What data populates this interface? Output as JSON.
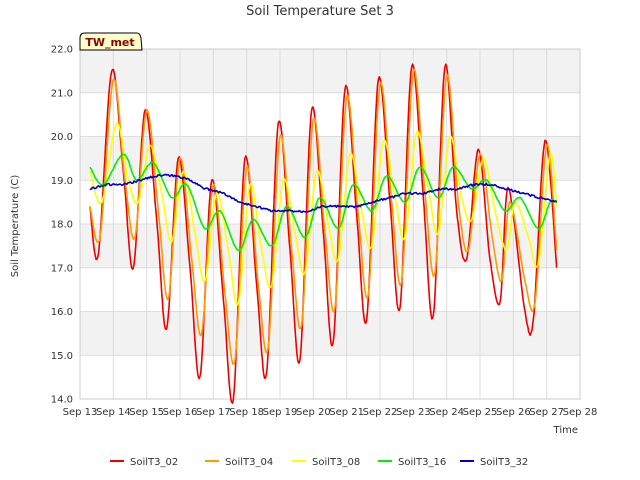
{
  "chart_data": {
    "type": "line",
    "title": "Soil Temperature Set 3",
    "xlabel": "Time",
    "ylabel": "Soil Temperature (C)",
    "badge": "TW_met",
    "ylim": [
      14.0,
      22.0
    ],
    "yticks": [
      "14.0",
      "15.0",
      "16.0",
      "17.0",
      "18.0",
      "19.0",
      "20.0",
      "21.0",
      "22.0"
    ],
    "xlim": [
      "Sep 13",
      "Sep 28"
    ],
    "xticks": [
      "Sep 13",
      "Sep 14",
      "Sep 15",
      "Sep 16",
      "Sep 17",
      "Sep 18",
      "Sep 19",
      "Sep 20",
      "Sep 21",
      "Sep 22",
      "Sep 23",
      "Sep 24",
      "Sep 25",
      "Sep 26",
      "Sep 27",
      "Sep 28"
    ],
    "grid": true,
    "legend_position": "bottom",
    "x_units": "days (Sep 13 = 13)",
    "series": [
      {
        "name": "SoilT3_02",
        "color": "#ee0000",
        "points": [
          [
            13.3,
            18.4
          ],
          [
            13.55,
            17.3
          ],
          [
            13.95,
            21.5
          ],
          [
            14.3,
            19.2
          ],
          [
            14.6,
            17.0
          ],
          [
            14.95,
            20.6
          ],
          [
            15.3,
            18.1
          ],
          [
            15.6,
            15.6
          ],
          [
            15.95,
            19.5
          ],
          [
            16.3,
            17.0
          ],
          [
            16.6,
            14.5
          ],
          [
            16.95,
            19.0
          ],
          [
            17.3,
            16.3
          ],
          [
            17.6,
            14.0
          ],
          [
            17.95,
            19.5
          ],
          [
            18.3,
            16.6
          ],
          [
            18.6,
            14.6
          ],
          [
            18.95,
            20.3
          ],
          [
            19.3,
            17.4
          ],
          [
            19.6,
            14.9
          ],
          [
            19.95,
            20.6
          ],
          [
            20.3,
            17.8
          ],
          [
            20.6,
            15.3
          ],
          [
            20.95,
            21.1
          ],
          [
            21.3,
            18.2
          ],
          [
            21.6,
            15.8
          ],
          [
            21.95,
            21.3
          ],
          [
            22.3,
            18.5
          ],
          [
            22.6,
            16.1
          ],
          [
            22.95,
            21.6
          ],
          [
            23.3,
            18.6
          ],
          [
            23.6,
            15.9
          ],
          [
            23.95,
            21.6
          ],
          [
            24.3,
            18.3
          ],
          [
            24.6,
            17.2
          ],
          [
            24.95,
            19.7
          ],
          [
            25.3,
            17.2
          ],
          [
            25.6,
            16.2
          ],
          [
            25.8,
            18.7
          ],
          [
            26.0,
            18.2
          ],
          [
            26.35,
            16.0
          ],
          [
            26.6,
            15.8
          ],
          [
            26.95,
            19.9
          ],
          [
            27.3,
            17.0
          ]
        ]
      },
      {
        "name": "SoilT3_04",
        "color": "#ff9900",
        "points": [
          [
            13.3,
            18.4
          ],
          [
            13.6,
            17.7
          ],
          [
            14.0,
            21.3
          ],
          [
            14.35,
            19.0
          ],
          [
            14.65,
            17.7
          ],
          [
            15.0,
            20.6
          ],
          [
            15.35,
            18.3
          ],
          [
            15.65,
            16.3
          ],
          [
            16.0,
            19.5
          ],
          [
            16.35,
            17.2
          ],
          [
            16.65,
            15.5
          ],
          [
            17.0,
            18.9
          ],
          [
            17.35,
            16.4
          ],
          [
            17.65,
            14.9
          ],
          [
            18.0,
            19.3
          ],
          [
            18.35,
            16.6
          ],
          [
            18.65,
            15.2
          ],
          [
            19.0,
            20.0
          ],
          [
            19.35,
            17.4
          ],
          [
            19.65,
            15.7
          ],
          [
            20.0,
            20.4
          ],
          [
            20.35,
            17.8
          ],
          [
            20.65,
            16.1
          ],
          [
            21.0,
            20.9
          ],
          [
            21.35,
            18.2
          ],
          [
            21.65,
            16.4
          ],
          [
            22.0,
            21.2
          ],
          [
            22.35,
            18.5
          ],
          [
            22.65,
            16.7
          ],
          [
            23.0,
            21.5
          ],
          [
            23.35,
            18.7
          ],
          [
            23.65,
            16.9
          ],
          [
            24.0,
            21.4
          ],
          [
            24.35,
            18.5
          ],
          [
            24.65,
            17.4
          ],
          [
            25.0,
            19.6
          ],
          [
            25.35,
            17.8
          ],
          [
            25.65,
            16.7
          ],
          [
            25.9,
            18.5
          ],
          [
            26.35,
            16.7
          ],
          [
            26.65,
            16.2
          ],
          [
            27.0,
            19.8
          ],
          [
            27.3,
            17.4
          ]
        ]
      },
      {
        "name": "SoilT3_08",
        "color": "#ffff00",
        "points": [
          [
            13.3,
            19.2
          ],
          [
            13.65,
            18.5
          ],
          [
            14.1,
            20.3
          ],
          [
            14.45,
            19.0
          ],
          [
            14.75,
            18.5
          ],
          [
            15.1,
            19.8
          ],
          [
            15.45,
            18.7
          ],
          [
            15.75,
            17.6
          ],
          [
            16.1,
            19.2
          ],
          [
            16.45,
            17.8
          ],
          [
            16.75,
            16.7
          ],
          [
            17.1,
            18.7
          ],
          [
            17.45,
            17.4
          ],
          [
            17.75,
            16.2
          ],
          [
            18.1,
            18.9
          ],
          [
            18.45,
            17.4
          ],
          [
            18.75,
            16.6
          ],
          [
            19.1,
            19.0
          ],
          [
            19.45,
            17.8
          ],
          [
            19.75,
            16.9
          ],
          [
            20.1,
            19.2
          ],
          [
            20.45,
            18.0
          ],
          [
            20.75,
            17.2
          ],
          [
            21.1,
            19.6
          ],
          [
            21.45,
            18.3
          ],
          [
            21.75,
            17.5
          ],
          [
            22.1,
            19.9
          ],
          [
            22.45,
            18.6
          ],
          [
            22.75,
            17.7
          ],
          [
            23.1,
            20.1
          ],
          [
            23.45,
            18.8
          ],
          [
            23.75,
            17.8
          ],
          [
            24.1,
            20.0
          ],
          [
            24.45,
            18.6
          ],
          [
            24.75,
            18.1
          ],
          [
            25.1,
            19.5
          ],
          [
            25.45,
            18.3
          ],
          [
            25.8,
            17.4
          ],
          [
            26.05,
            18.5
          ],
          [
            26.45,
            17.7
          ],
          [
            26.75,
            17.1
          ],
          [
            27.1,
            19.6
          ],
          [
            27.3,
            18.4
          ]
        ]
      },
      {
        "name": "SoilT3_16",
        "color": "#00ee00",
        "points": [
          [
            13.3,
            19.3
          ],
          [
            13.7,
            18.9
          ],
          [
            14.3,
            19.6
          ],
          [
            14.7,
            19.0
          ],
          [
            15.2,
            19.4
          ],
          [
            15.75,
            18.6
          ],
          [
            16.2,
            18.9
          ],
          [
            16.75,
            17.9
          ],
          [
            17.2,
            18.3
          ],
          [
            17.75,
            17.4
          ],
          [
            18.2,
            18.1
          ],
          [
            18.75,
            17.5
          ],
          [
            19.2,
            18.4
          ],
          [
            19.75,
            17.7
          ],
          [
            20.2,
            18.6
          ],
          [
            20.75,
            17.9
          ],
          [
            21.2,
            18.9
          ],
          [
            21.75,
            18.3
          ],
          [
            22.2,
            19.1
          ],
          [
            22.75,
            18.5
          ],
          [
            23.2,
            19.3
          ],
          [
            23.75,
            18.6
          ],
          [
            24.2,
            19.3
          ],
          [
            24.75,
            18.8
          ],
          [
            25.2,
            19.0
          ],
          [
            25.75,
            18.3
          ],
          [
            26.2,
            18.6
          ],
          [
            26.75,
            17.9
          ],
          [
            27.1,
            18.5
          ],
          [
            27.3,
            18.5
          ]
        ]
      },
      {
        "name": "SoilT3_32",
        "color": "#0000cc",
        "points": [
          [
            13.3,
            18.8
          ],
          [
            13.8,
            18.9
          ],
          [
            14.3,
            18.9
          ],
          [
            14.8,
            19.0
          ],
          [
            15.3,
            19.1
          ],
          [
            15.8,
            19.1
          ],
          [
            16.3,
            19.0
          ],
          [
            16.8,
            18.8
          ],
          [
            17.3,
            18.7
          ],
          [
            17.8,
            18.5
          ],
          [
            18.3,
            18.4
          ],
          [
            18.8,
            18.3
          ],
          [
            19.3,
            18.3
          ],
          [
            19.8,
            18.3
          ],
          [
            20.3,
            18.4
          ],
          [
            20.8,
            18.4
          ],
          [
            21.3,
            18.4
          ],
          [
            21.8,
            18.5
          ],
          [
            22.3,
            18.6
          ],
          [
            22.8,
            18.7
          ],
          [
            23.3,
            18.7
          ],
          [
            23.8,
            18.8
          ],
          [
            24.3,
            18.8
          ],
          [
            24.8,
            18.9
          ],
          [
            25.3,
            18.9
          ],
          [
            25.8,
            18.8
          ],
          [
            26.3,
            18.7
          ],
          [
            26.8,
            18.6
          ],
          [
            27.3,
            18.5
          ]
        ]
      }
    ]
  }
}
